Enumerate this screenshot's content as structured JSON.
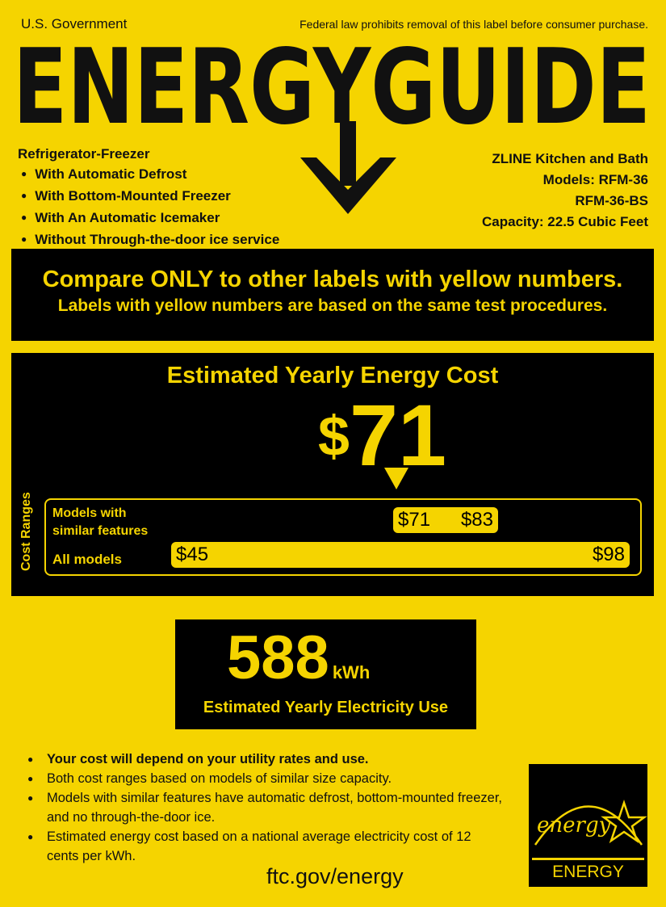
{
  "header": {
    "left": "U.S. Government",
    "right": "Federal law prohibits removal of this label before consumer purchase.",
    "title": "ENERGYGUIDE"
  },
  "product": {
    "type": "Refrigerator-Freezer",
    "features": [
      "With Automatic Defrost",
      "With Bottom-Mounted Freezer",
      "With An Automatic Icemaker",
      "Without Through-the-door ice service"
    ]
  },
  "manufacturer": {
    "name": "ZLINE Kitchen and Bath",
    "models": "Models: RFM-36",
    "model2": "RFM-36-BS",
    "capacity": "Capacity: 22.5 Cubic Feet"
  },
  "compare": {
    "line1": "Compare ONLY to other labels with yellow numbers.",
    "line2": "Labels with yellow numbers are based on the same test procedures."
  },
  "cost": {
    "heading": "Estimated Yearly Energy Cost",
    "currency": "$",
    "value": "71",
    "side_label": "Cost Ranges",
    "similar": {
      "label1": "Models with",
      "label2": "similar features",
      "low": "$71",
      "high": "$83"
    },
    "all": {
      "label": "All models",
      "low": "$45",
      "high": "$98"
    }
  },
  "electricity": {
    "value": "588",
    "unit": "kWh",
    "label": "Estimated Yearly Electricity Use"
  },
  "notes": [
    "Your cost will depend on your utility rates and use.",
    "Both cost ranges based on models of similar size capacity.",
    "Models with similar features have automatic defrost, bottom-mounted freezer, and no through-the-door ice.",
    "Estimated energy cost based on a national average electricity cost of 12 cents per kWh."
  ],
  "footer": {
    "url": "ftc.gov/energy"
  },
  "energy_star": {
    "script": "energy",
    "label": "ENERGY STAR"
  },
  "colors": {
    "yellow": "#f5d400",
    "black": "#000000"
  }
}
